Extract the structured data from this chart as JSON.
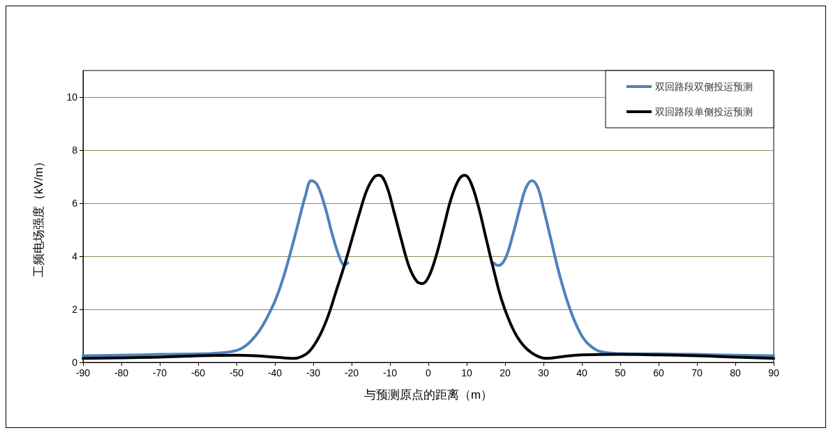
{
  "chart_data": {
    "type": "line",
    "xlabel": "与预测原点的距离（m）",
    "ylabel": "工频电场强度（kV/m）",
    "xlim": [
      -90,
      90
    ],
    "xticks": [
      -90,
      -80,
      -70,
      -60,
      -50,
      -40,
      -30,
      -20,
      -10,
      0,
      10,
      20,
      30,
      40,
      50,
      60,
      70,
      80,
      90
    ],
    "ylim": [
      0,
      11
    ],
    "yticks": [
      0,
      2,
      4,
      6,
      8,
      10
    ],
    "grid": "y",
    "legend": "top right",
    "marker": "none",
    "line_style": "solid",
    "series": [
      {
        "name": "双回路段双侧投运预测",
        "color": "#4f81bd",
        "x": [
          -90,
          -80,
          -70,
          -60,
          -55,
          -50,
          -47,
          -44,
          -42,
          -40,
          -38,
          -36,
          -34,
          -32,
          -30.5,
          -29,
          -27,
          -25,
          -23,
          -21.9,
          -21,
          -20,
          17,
          18.2,
          20,
          22,
          24,
          25.5,
          27,
          28.5,
          30,
          32,
          34,
          36,
          38,
          40,
          42,
          45,
          50,
          60,
          70,
          80,
          90
        ],
        "values": [
          0.25,
          0.27,
          0.3,
          0.32,
          0.35,
          0.45,
          0.7,
          1.2,
          1.7,
          2.3,
          3.1,
          4.1,
          5.2,
          6.3,
          6.85,
          6.7,
          5.9,
          4.8,
          3.9,
          3.67,
          3.75,
          null,
          3.75,
          3.65,
          3.9,
          4.8,
          5.9,
          6.6,
          6.85,
          6.6,
          5.8,
          4.6,
          3.4,
          2.4,
          1.6,
          1.0,
          0.65,
          0.4,
          0.33,
          0.32,
          0.3,
          0.27,
          0.25
        ]
      },
      {
        "name": "双回路段单侧投运预测",
        "color": "#000000",
        "x": [
          -90,
          -80,
          -70,
          -60,
          -50,
          -45,
          -40,
          -35,
          -32,
          -30,
          -28,
          -26,
          -24,
          -22,
          -20,
          -18,
          -16,
          -14,
          -12.8,
          -11,
          -9,
          -7,
          -5,
          -3,
          -1.6,
          0,
          2,
          4,
          6,
          8,
          9.5,
          11,
          13,
          15,
          17,
          19,
          21,
          23,
          25,
          27,
          29,
          30.6,
          35,
          40,
          50,
          60,
          70,
          80,
          90
        ],
        "values": [
          0.15,
          0.17,
          0.2,
          0.25,
          0.27,
          0.25,
          0.2,
          0.15,
          0.3,
          0.6,
          1.1,
          1.8,
          2.7,
          3.6,
          4.6,
          5.6,
          6.5,
          7.0,
          7.05,
          6.7,
          5.7,
          4.6,
          3.6,
          3.05,
          2.97,
          3.2,
          4.0,
          5.1,
          6.2,
          6.9,
          7.05,
          6.8,
          5.9,
          4.7,
          3.5,
          2.4,
          1.6,
          1.0,
          0.6,
          0.35,
          0.2,
          0.15,
          0.22,
          0.28,
          0.3,
          0.28,
          0.25,
          0.2,
          0.15
        ]
      }
    ]
  }
}
